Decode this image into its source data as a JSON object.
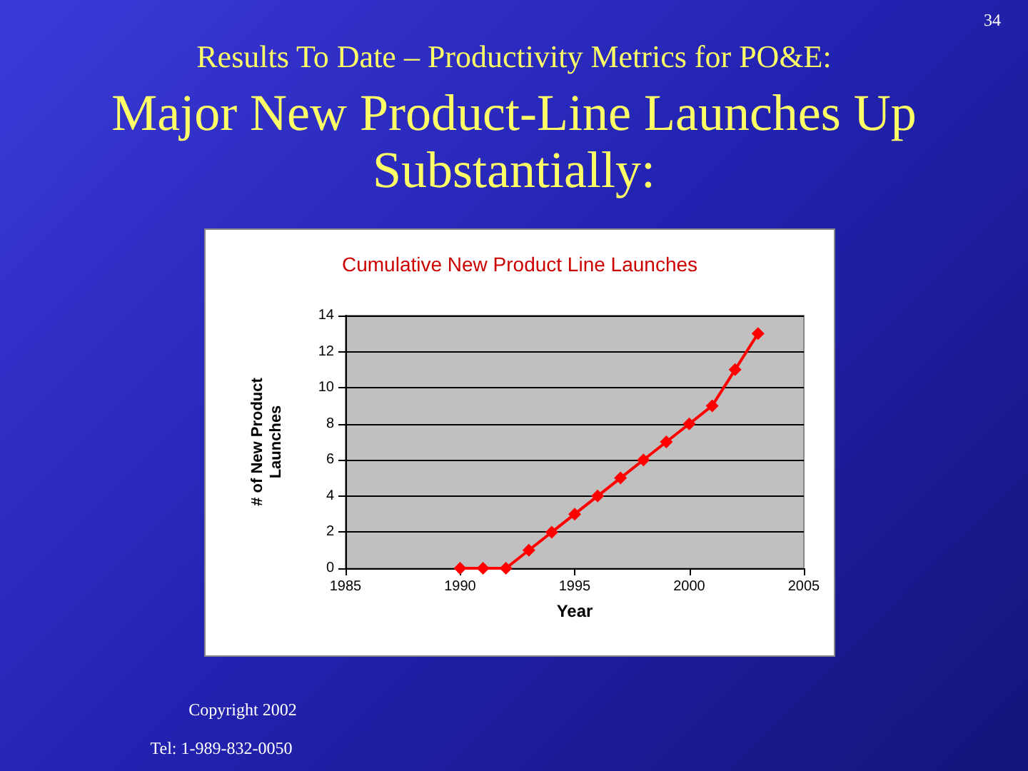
{
  "chart_data": {
    "type": "line",
    "title": "Cumulative New Product Line Launches",
    "xlabel": "Year",
    "ylabel": "# of New Product\nLaunches",
    "x": [
      1990,
      1991,
      1992,
      1993,
      1994,
      1995,
      1996,
      1997,
      1998,
      1999,
      2000,
      2001,
      2002,
      2003
    ],
    "series": [
      {
        "color": "#ff0000",
        "values": [
          0,
          0,
          0,
          1,
          2,
          3,
          4,
          5,
          6,
          7,
          8,
          9,
          11,
          13
        ]
      }
    ],
    "xlim": [
      1985,
      2005
    ],
    "xticks": [
      1985,
      1990,
      1995,
      2000,
      2005
    ],
    "ylim": [
      0,
      14
    ],
    "yticks": [
      0,
      2,
      4,
      6,
      8,
      10,
      12,
      14
    ],
    "grid": "y",
    "marker": "diamond",
    "line_style": "solid",
    "annotations": [
      "34",
      "Results To Date – Productivity Metrics for PO&E:",
      "Major New Product-Line Launches Up Substantially:",
      "Copyright 2002",
      "Tel:  1-989-832-0050"
    ]
  }
}
